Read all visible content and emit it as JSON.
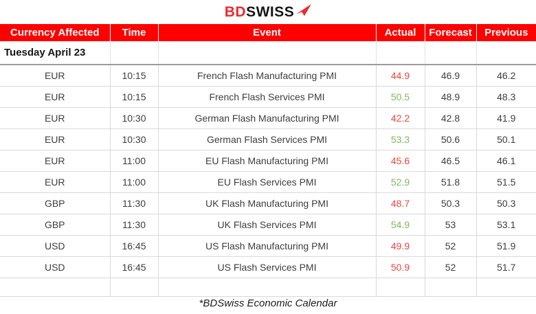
{
  "logo": {
    "bd": "BD",
    "swiss": "SWISS"
  },
  "colors": {
    "header_bg": "#fe0000",
    "header_text": "#ffffff",
    "positive": "#7fb95e",
    "negative": "#f0433c",
    "logo_red": "#f0282d",
    "logo_black": "#161616"
  },
  "table": {
    "headers": [
      "Currency Affected",
      "Time",
      "Event",
      "Actual",
      "Forecast",
      "Previous"
    ],
    "date_header": "Tuesday April 23",
    "rows": [
      {
        "currency": "EUR",
        "time": "10:15",
        "event": "French Flash Manufacturing PMI",
        "actual": "44.9",
        "actual_status": "negative",
        "forecast": "46.9",
        "previous": "46.2"
      },
      {
        "currency": "EUR",
        "time": "10:15",
        "event": "French Flash Services PMI",
        "actual": "50.5",
        "actual_status": "positive",
        "forecast": "48.9",
        "previous": "48.3"
      },
      {
        "currency": "EUR",
        "time": "10:30",
        "event": "German Flash Manufacturing PMI",
        "actual": "42.2",
        "actual_status": "negative",
        "forecast": "42.8",
        "previous": "41.9"
      },
      {
        "currency": "EUR",
        "time": "10:30",
        "event": "German Flash Services PMI",
        "actual": "53.3",
        "actual_status": "positive",
        "forecast": "50.6",
        "previous": "50.1"
      },
      {
        "currency": "EUR",
        "time": "11:00",
        "event": "EU Flash Manufacturing PMI",
        "actual": "45.6",
        "actual_status": "negative",
        "forecast": "46.5",
        "previous": "46.1"
      },
      {
        "currency": "EUR",
        "time": "11:00",
        "event": "EU Flash Services PMI",
        "actual": "52.9",
        "actual_status": "positive",
        "forecast": "51.8",
        "previous": "51.5"
      },
      {
        "currency": "GBP",
        "time": "11:30",
        "event": "UK Flash Manufacturing PMI",
        "actual": "48.7",
        "actual_status": "negative",
        "forecast": "50.3",
        "previous": "50.3"
      },
      {
        "currency": "GBP",
        "time": "11:30",
        "event": "UK Flash Services PMI",
        "actual": "54.9",
        "actual_status": "positive",
        "forecast": "53",
        "previous": "53.1"
      },
      {
        "currency": "USD",
        "time": "16:45",
        "event": "US Flash Manufacturing PMI",
        "actual": "49.9",
        "actual_status": "negative",
        "forecast": "52",
        "previous": "51.9"
      },
      {
        "currency": "USD",
        "time": "16:45",
        "event": "US Flash Services PMI",
        "actual": "50.9",
        "actual_status": "negative",
        "forecast": "52",
        "previous": "51.7"
      }
    ]
  },
  "footer": {
    "caption": "*BDSwiss Economic Calendar"
  }
}
